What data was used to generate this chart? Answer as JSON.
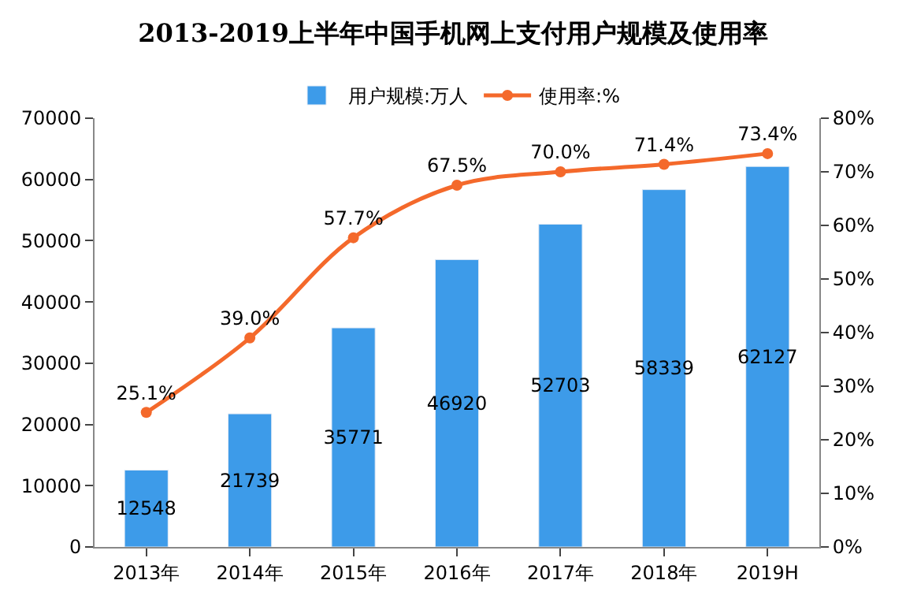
{
  "chart_data": {
    "type": "bar",
    "title": "2013-2019上半年中国手机网上支付用户规模及使用率",
    "categories": [
      "2013年",
      "2014年",
      "2015年",
      "2016年",
      "2017年",
      "2018年",
      "2019H"
    ],
    "series": [
      {
        "name": "用户规模:万人",
        "color": "#3d9be9",
        "values": [
          12548,
          21739,
          35771,
          46920,
          52703,
          58339,
          62127
        ],
        "value_labels": [
          "12548",
          "21739",
          "35771",
          "46920",
          "52703",
          "58339",
          "62127"
        ]
      },
      {
        "name": "使用率:%",
        "type": "line",
        "axis": "y2",
        "color": "#f4692b",
        "marker": "circle",
        "values": [
          25.1,
          39.0,
          57.7,
          67.5,
          70.0,
          71.4,
          73.4
        ],
        "value_labels": [
          "25.1%",
          "39.0%",
          "57.7%",
          "67.5%",
          "70.0%",
          "71.4%",
          "73.4%"
        ]
      }
    ],
    "ylim": [
      0,
      70000
    ],
    "yticks": [
      0,
      10000,
      20000,
      30000,
      40000,
      50000,
      60000,
      70000
    ],
    "y2lim": [
      0,
      80
    ],
    "y2ticks": [
      {
        "value": 0,
        "label": "0%"
      },
      {
        "value": 10,
        "label": "10%"
      },
      {
        "value": 20,
        "label": "20%"
      },
      {
        "value": 30,
        "label": "30%"
      },
      {
        "value": 40,
        "label": "40%"
      },
      {
        "value": 50,
        "label": "50%"
      },
      {
        "value": 60,
        "label": "60%"
      },
      {
        "value": 70,
        "label": "70%"
      },
      {
        "value": 80,
        "label": "80%"
      }
    ],
    "legend": "top"
  }
}
